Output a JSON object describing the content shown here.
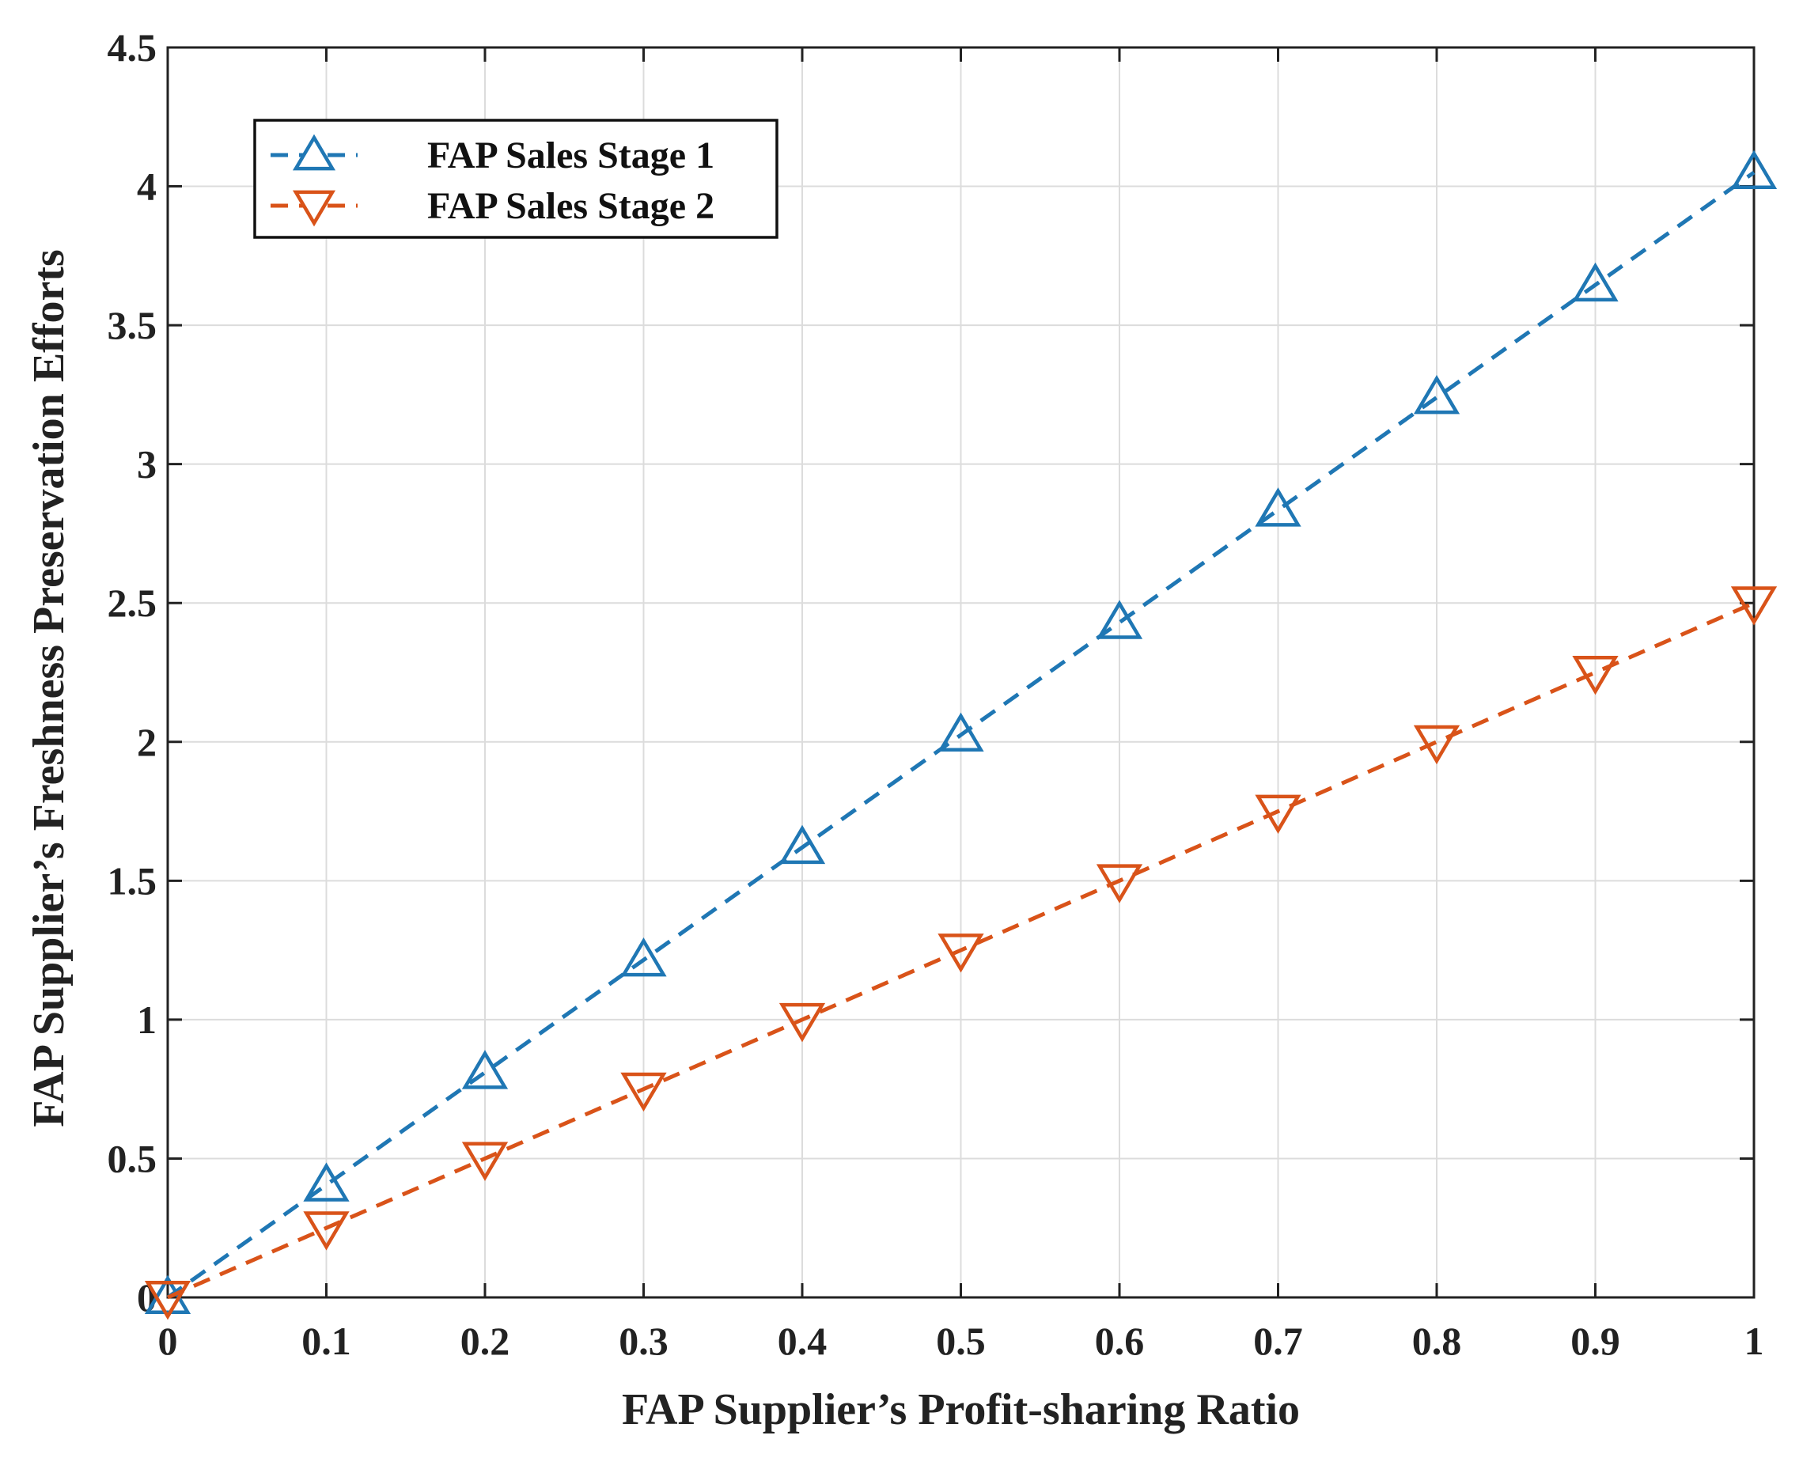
{
  "chart_data": {
    "type": "line",
    "title": "",
    "xlabel": "FAP Supplier’s Profit-sharing Ratio",
    "ylabel": "FAP Supplier’s Freshness Preservation Efforts",
    "xlim": [
      0,
      1
    ],
    "ylim": [
      0,
      4.5
    ],
    "grid": true,
    "legend_position": "top-left",
    "x_ticks": [
      {
        "value": 0,
        "label": "0"
      },
      {
        "value": 0.1,
        "label": "0.1"
      },
      {
        "value": 0.2,
        "label": "0.2"
      },
      {
        "value": 0.3,
        "label": "0.3"
      },
      {
        "value": 0.4,
        "label": "0.4"
      },
      {
        "value": 0.5,
        "label": "0.5"
      },
      {
        "value": 0.6,
        "label": "0.6"
      },
      {
        "value": 0.7,
        "label": "0.7"
      },
      {
        "value": 0.8,
        "label": "0.8"
      },
      {
        "value": 0.9,
        "label": "0.9"
      },
      {
        "value": 1,
        "label": "1"
      }
    ],
    "y_ticks": [
      {
        "value": 0,
        "label": "0"
      },
      {
        "value": 0.5,
        "label": "0.5"
      },
      {
        "value": 1,
        "label": "1"
      },
      {
        "value": 1.5,
        "label": "1.5"
      },
      {
        "value": 2,
        "label": "2"
      },
      {
        "value": 2.5,
        "label": "2.5"
      },
      {
        "value": 3,
        "label": "3"
      },
      {
        "value": 3.5,
        "label": "3.5"
      },
      {
        "value": 4,
        "label": "4"
      },
      {
        "value": 4.5,
        "label": "4.5"
      }
    ],
    "x": [
      0,
      0.1,
      0.2,
      0.3,
      0.4,
      0.5,
      0.6,
      0.7,
      0.8,
      0.9,
      1
    ],
    "series": [
      {
        "name": "FAP Sales Stage 1",
        "color": "#1f77b4",
        "marker": "triangle-up",
        "line_style": "dashed",
        "values": [
          0,
          0.405,
          0.81,
          1.215,
          1.62,
          2.025,
          2.43,
          2.835,
          3.24,
          3.645,
          4.05
        ]
      },
      {
        "name": "FAP Sales Stage 2",
        "color": "#d95319",
        "marker": "triangle-down",
        "line_style": "dashed",
        "values": [
          0,
          0.25,
          0.5,
          0.75,
          1.0,
          1.25,
          1.5,
          1.75,
          2.0,
          2.25,
          2.5
        ]
      }
    ]
  }
}
